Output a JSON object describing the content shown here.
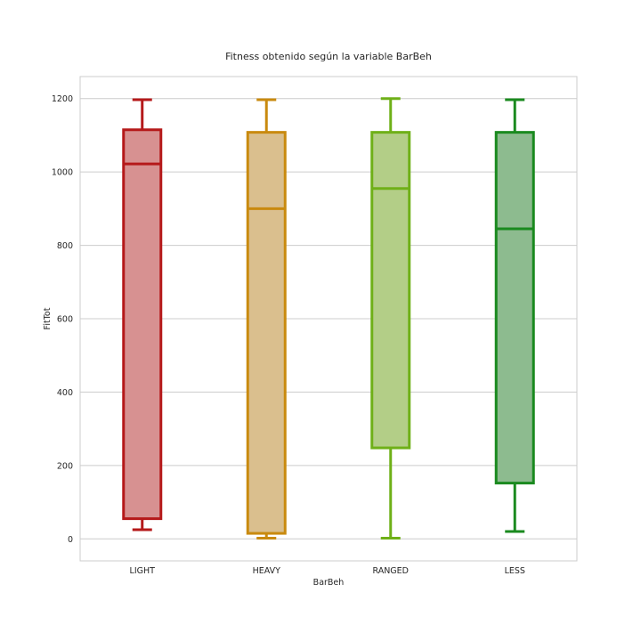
{
  "chart_data": {
    "type": "box",
    "title": "Fitness obtenido según la variable BarBeh",
    "xlabel": "BarBeh",
    "ylabel": "FitTot",
    "ylim": [
      -60,
      1260
    ],
    "yticks": [
      0,
      200,
      400,
      600,
      800,
      1000,
      1200
    ],
    "grid": true,
    "categories": [
      "LIGHT",
      "HEAVY",
      "RANGED",
      "LESS"
    ],
    "boxes": [
      {
        "category": "LIGHT",
        "whisker_low": 25,
        "q1": 55,
        "median": 1022,
        "q3": 1115,
        "whisker_high": 1197,
        "edge_color": "#b5191a",
        "fill_color": "#d79191"
      },
      {
        "category": "HEAVY",
        "whisker_low": 2,
        "q1": 15,
        "median": 900,
        "q3": 1108,
        "whisker_high": 1197,
        "edge_color": "#c98a0f",
        "fill_color": "#dabf8e"
      },
      {
        "category": "RANGED",
        "whisker_low": 2,
        "q1": 248,
        "median": 955,
        "q3": 1108,
        "whisker_high": 1200,
        "edge_color": "#6fb018",
        "fill_color": "#b3ce87"
      },
      {
        "category": "LESS",
        "whisker_low": 20,
        "q1": 152,
        "median": 845,
        "q3": 1108,
        "whisker_high": 1197,
        "edge_color": "#1a8a1f",
        "fill_color": "#8dbb8f"
      }
    ]
  }
}
